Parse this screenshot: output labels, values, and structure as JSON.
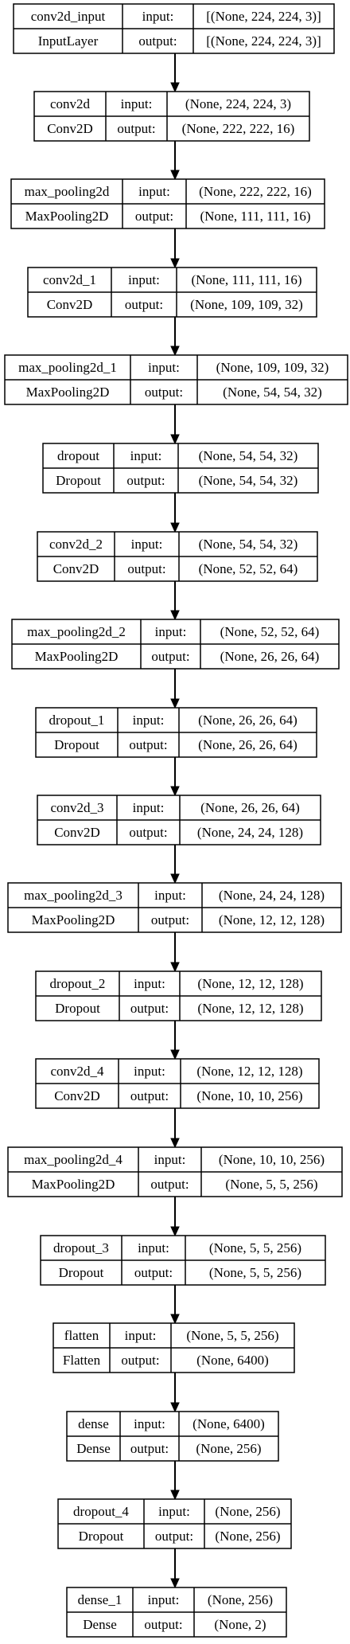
{
  "diagram": {
    "labels": {
      "input": "input:",
      "output": "output:"
    },
    "layers": [
      {
        "name": "conv2d_input",
        "type": "InputLayer",
        "input": "[(None, 224, 224, 3)]",
        "output": "[(None, 224, 224, 3)]"
      },
      {
        "name": "conv2d",
        "type": "Conv2D",
        "input": "(None, 224, 224, 3)",
        "output": "(None, 222, 222, 16)"
      },
      {
        "name": "max_pooling2d",
        "type": "MaxPooling2D",
        "input": "(None, 222, 222, 16)",
        "output": "(None, 111, 111, 16)"
      },
      {
        "name": "conv2d_1",
        "type": "Conv2D",
        "input": "(None, 111, 111, 16)",
        "output": "(None, 109, 109, 32)"
      },
      {
        "name": "max_pooling2d_1",
        "type": "MaxPooling2D",
        "input": "(None, 109, 109, 32)",
        "output": "(None, 54, 54, 32)"
      },
      {
        "name": "dropout",
        "type": "Dropout",
        "input": "(None, 54, 54, 32)",
        "output": "(None, 54, 54, 32)"
      },
      {
        "name": "conv2d_2",
        "type": "Conv2D",
        "input": "(None, 54, 54, 32)",
        "output": "(None, 52, 52, 64)"
      },
      {
        "name": "max_pooling2d_2",
        "type": "MaxPooling2D",
        "input": "(None, 52, 52, 64)",
        "output": "(None, 26, 26, 64)"
      },
      {
        "name": "dropout_1",
        "type": "Dropout",
        "input": "(None, 26, 26, 64)",
        "output": "(None, 26, 26, 64)"
      },
      {
        "name": "conv2d_3",
        "type": "Conv2D",
        "input": "(None, 26, 26, 64)",
        "output": "(None, 24, 24, 128)"
      },
      {
        "name": "max_pooling2d_3",
        "type": "MaxPooling2D",
        "input": "(None, 24, 24, 128)",
        "output": "(None, 12, 12, 128)"
      },
      {
        "name": "dropout_2",
        "type": "Dropout",
        "input": "(None, 12, 12, 128)",
        "output": "(None, 12, 12, 128)"
      },
      {
        "name": "conv2d_4",
        "type": "Conv2D",
        "input": "(None, 12, 12, 128)",
        "output": "(None, 10, 10, 256)"
      },
      {
        "name": "max_pooling2d_4",
        "type": "MaxPooling2D",
        "input": "(None, 10, 10, 256)",
        "output": "(None, 5, 5, 256)"
      },
      {
        "name": "dropout_3",
        "type": "Dropout",
        "input": "(None, 5, 5, 256)",
        "output": "(None, 5, 5, 256)"
      },
      {
        "name": "flatten",
        "type": "Flatten",
        "input": "(None, 5, 5, 256)",
        "output": "(None, 6400)"
      },
      {
        "name": "dense",
        "type": "Dense",
        "input": "(None, 6400)",
        "output": "(None, 256)"
      },
      {
        "name": "dropout_4",
        "type": "Dropout",
        "input": "(None, 256)",
        "output": "(None, 256)"
      },
      {
        "name": "dense_1",
        "type": "Dense",
        "input": "(None, 256)",
        "output": "(None, 2)"
      }
    ],
    "colors": {
      "line": "#000000",
      "text": "#000000",
      "background": "#ffffff"
    }
  }
}
